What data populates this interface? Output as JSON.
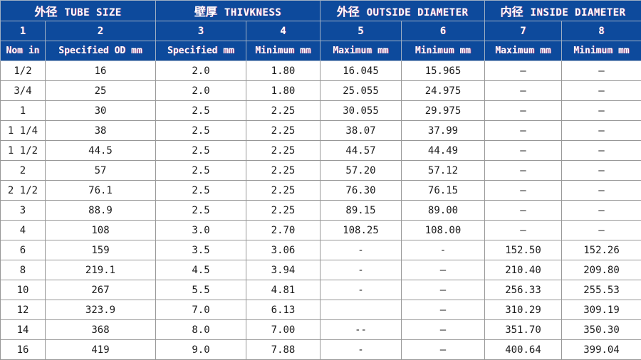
{
  "table": {
    "title": "tube-size-specification-table",
    "colors": {
      "header_bg": "#0d4a9c",
      "header_text": "#ffffff",
      "header_text_shadow": "#ff4678",
      "grid_line": "#979797",
      "body_text": "#1c1c1c",
      "body_bg": "#ffffff"
    },
    "groups": [
      {
        "zh": "外径",
        "en": "TUBE SIZE"
      },
      {
        "zh": "壁厚",
        "en": "THIVKNESS"
      },
      {
        "zh": "外径",
        "en": "OUTSIDE DIAMETER"
      },
      {
        "zh": "内径",
        "en": "INSIDE DIAMETER"
      }
    ],
    "col_numbers": [
      "1",
      "2",
      "3",
      "4",
      "5",
      "6",
      "7",
      "8"
    ],
    "col_headers": [
      "Nom in",
      "Specified OD mm",
      "Specified mm",
      "Minimum mm",
      "Maximum mm",
      "Minimum mm",
      "Maximum mm",
      "Minimum mm"
    ],
    "rows": [
      [
        "1/2",
        "16",
        "2.0",
        "1.80",
        "16.045",
        "15.965",
        "—",
        "—"
      ],
      [
        "3/4",
        "25",
        "2.0",
        "1.80",
        "25.055",
        "24.975",
        "—",
        "—"
      ],
      [
        "1",
        "30",
        "2.5",
        "2.25",
        "30.055",
        "29.975",
        "—",
        "—"
      ],
      [
        "1 1/4",
        "38",
        "2.5",
        "2.25",
        "38.07",
        "37.99",
        "—",
        "—"
      ],
      [
        "1 1/2",
        "44.5",
        "2.5",
        "2.25",
        "44.57",
        "44.49",
        "—",
        "—"
      ],
      [
        "2",
        "57",
        "2.5",
        "2.25",
        "57.20",
        "57.12",
        "—",
        "—"
      ],
      [
        "2 1/2",
        "76.1",
        "2.5",
        "2.25",
        "76.30",
        "76.15",
        "—",
        "—"
      ],
      [
        "3",
        "88.9",
        "2.5",
        "2.25",
        "89.15",
        "89.00",
        "—",
        "—"
      ],
      [
        "4",
        "108",
        "3.0",
        "2.70",
        "108.25",
        "108.00",
        "—",
        "—"
      ],
      [
        "6",
        "159",
        "3.5",
        "3.06",
        "-",
        "-",
        "152.50",
        "152.26"
      ],
      [
        "8",
        "219.1",
        "4.5",
        "3.94",
        "-",
        "—",
        "210.40",
        "209.80"
      ],
      [
        "10",
        "267",
        "5.5",
        "4.81",
        "-",
        "—",
        "256.33",
        "255.53"
      ],
      [
        "12",
        "323.9",
        "7.0",
        "6.13",
        "",
        "—",
        "310.29",
        "309.19"
      ],
      [
        "14",
        "368",
        "8.0",
        "7.00",
        "--",
        "—",
        "351.70",
        "350.30"
      ],
      [
        "16",
        "419",
        "9.0",
        "7.88",
        "-",
        "—",
        "400.64",
        "399.04"
      ]
    ]
  }
}
